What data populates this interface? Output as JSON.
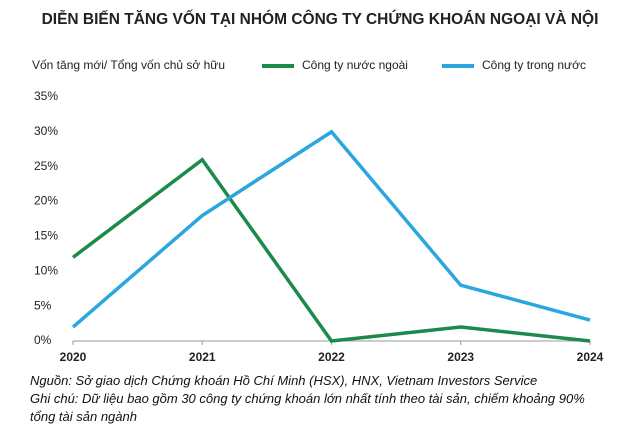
{
  "chart_data": {
    "type": "line",
    "title": "DIỄN BIẾN TĂNG VỐN TẠI NHÓM CÔNG TY CHỨNG KHOÁN NGOẠI VÀ NỘI",
    "y_label": "Vốn tăng mới/ Tổng vốn chủ sở hữu",
    "x": [
      2020,
      2021,
      2022,
      2023,
      2024
    ],
    "series": [
      {
        "name": "Công ty nước ngoài",
        "color": "#1b8a4c",
        "values": [
          12,
          26,
          0,
          2,
          0
        ]
      },
      {
        "name": "Công ty trong nước",
        "color": "#2aa7df",
        "values": [
          2,
          18,
          30,
          8,
          3
        ]
      }
    ],
    "xlim": [
      2020,
      2024
    ],
    "xticks": [
      2020,
      2021,
      2022,
      2023,
      2024
    ],
    "ylim": [
      0,
      35
    ],
    "yticks": [
      {
        "value": 0,
        "label": "0%"
      },
      {
        "value": 5,
        "label": "5%"
      },
      {
        "value": 10,
        "label": "10%"
      },
      {
        "value": 15,
        "label": "15%"
      },
      {
        "value": 20,
        "label": "20%"
      },
      {
        "value": 25,
        "label": "25%"
      },
      {
        "value": 30,
        "label": "30%"
      },
      {
        "value": 35,
        "label": "35%"
      }
    ],
    "grid": false,
    "notes": [
      "Nguồn: Sở giao dịch Chứng khoán Hồ Chí Minh (HSX), HNX, Vietnam Investors Service",
      "Ghi chú: Dữ liệu bao gồm 30 công ty chứng khoán lớn nhất tính theo tài sản, chiếm khoảng 90% tổng tài sản ngành"
    ]
  }
}
